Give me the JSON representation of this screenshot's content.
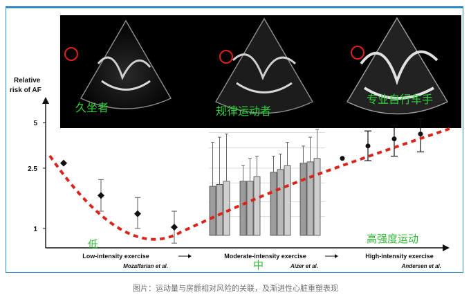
{
  "figure": {
    "echo_panels": [
      {
        "label": "久坐者"
      },
      {
        "label": "规律运动者"
      },
      {
        "label": "专业自行车手"
      }
    ],
    "overlay_labels": {
      "low": "低",
      "moderate": "中",
      "high": "高强度运动"
    },
    "caption": "图片：运动量与房颤相对风险的关联，及渐进性心脏重塑表现"
  },
  "colors": {
    "trend_line": "#d9261c",
    "border": "#2b89c6",
    "chinese_label": "#2fb833"
  },
  "chart_data": {
    "type": "bar",
    "ylabel": "Relative\nrisk of AF",
    "y_ticks": [
      "5",
      "2.5",
      "1"
    ],
    "y_tick_values": [
      5,
      2.5,
      1
    ],
    "y_scale": "log",
    "x_segments": [
      {
        "label": "Low-intensity exercise",
        "source": "Mozaffarian et al."
      },
      {
        "label": "Moderate-intensity exercise",
        "source": "Aizer et al."
      },
      {
        "label": "High-intensity exercise",
        "source": "Andersen et al."
      }
    ],
    "low_points": [
      {
        "x": 1,
        "y": 2.7,
        "low": null,
        "high": null
      },
      {
        "x": 2,
        "y": 1.65,
        "low": 1.3,
        "high": 2.1
      },
      {
        "x": 3,
        "y": 1.25,
        "low": 1.0,
        "high": 1.6
      },
      {
        "x": 4,
        "y": 1.02,
        "low": 0.8,
        "high": 1.3
      }
    ],
    "moderate_groups": [
      {
        "bars": [
          {
            "value": 1.9,
            "high": 3.7
          },
          {
            "value": 1.95,
            "high": 4.0
          },
          {
            "value": 2.05,
            "high": 4.2
          }
        ]
      },
      {
        "bars": [
          {
            "value": 2.05,
            "high": 2.6
          },
          {
            "value": 2.05,
            "high": 2.9
          },
          {
            "value": 2.2,
            "high": 3.0
          }
        ]
      },
      {
        "bars": [
          {
            "value": 2.35,
            "high": 3.0
          },
          {
            "value": 2.45,
            "high": 3.1
          },
          {
            "value": 2.6,
            "high": 3.7
          }
        ]
      },
      {
        "bars": [
          {
            "value": 2.7,
            "high": 3.5
          },
          {
            "value": 2.75,
            "high": 4.0
          },
          {
            "value": 2.9,
            "high": 4.5
          }
        ]
      }
    ],
    "high_points": [
      {
        "x": 1,
        "y": 2.9,
        "low": null,
        "high": null
      },
      {
        "x": 2,
        "y": 3.5,
        "low": 2.8,
        "high": 4.4
      },
      {
        "x": 3,
        "y": 3.9,
        "low": 3.0,
        "high": 4.8
      },
      {
        "x": 4,
        "y": 4.2,
        "low": 3.2,
        "high": 5.3
      }
    ],
    "trend": "J-shaped (dashed red)"
  }
}
